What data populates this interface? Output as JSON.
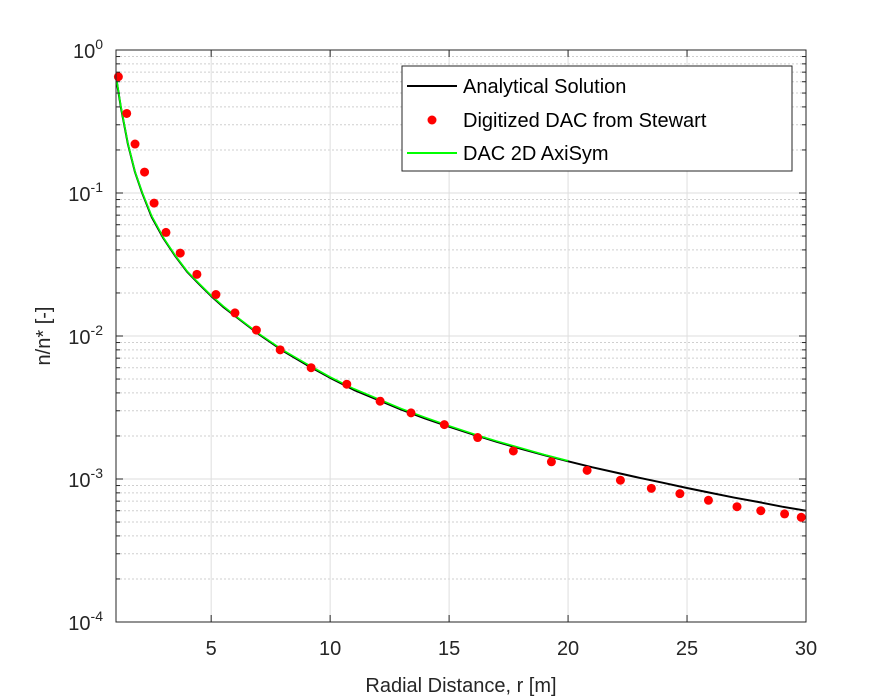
{
  "chart_data": {
    "type": "line",
    "title": "",
    "xlabel": "Radial Distance, r [m]",
    "ylabel": "n/n* [-]",
    "xlim": [
      1,
      30
    ],
    "ylim": [
      0.0001,
      1
    ],
    "yscale": "log",
    "grid": true,
    "legend_position": "top-right",
    "x_ticks": [
      5,
      10,
      15,
      20,
      25,
      30
    ],
    "x_tick_labels": [
      "5",
      "10",
      "15",
      "20",
      "25",
      "30"
    ],
    "y_ticks": [
      0.0001,
      0.001,
      0.01,
      0.1,
      1
    ],
    "y_tick_labels": [
      {
        "base": "10",
        "exp": "-4"
      },
      {
        "base": "10",
        "exp": "-3"
      },
      {
        "base": "10",
        "exp": "-2"
      },
      {
        "base": "10",
        "exp": "-1"
      },
      {
        "base": "10",
        "exp": "0"
      }
    ],
    "series": [
      {
        "name": "Analytical Solution",
        "style": "line",
        "color": "#000000",
        "x": [
          1.0,
          1.2,
          1.5,
          1.8,
          2.1,
          2.5,
          3.0,
          3.5,
          4.0,
          4.5,
          5.0,
          5.5,
          6.0,
          7.0,
          8.0,
          9.0,
          10.0,
          11.0,
          12.0,
          13.0,
          14.0,
          15.0,
          16.0,
          17.0,
          18.0,
          19.0,
          20.0,
          21.0,
          22.0,
          23.0,
          24.0,
          25.0,
          26.0,
          27.0,
          28.0,
          29.0,
          30.0
        ],
        "y": [
          0.65,
          0.4,
          0.22,
          0.14,
          0.1,
          0.068,
          0.048,
          0.036,
          0.028,
          0.023,
          0.019,
          0.016,
          0.0138,
          0.0103,
          0.0079,
          0.0063,
          0.0051,
          0.0042,
          0.00358,
          0.00305,
          0.00265,
          0.00232,
          0.00205,
          0.00182,
          0.00163,
          0.00147,
          0.00133,
          0.00121,
          0.00111,
          0.00102,
          0.00094,
          0.000865,
          0.0008,
          0.00074,
          0.00069,
          0.00064,
          0.0006
        ]
      },
      {
        "name": "Digitized DAC from Stewart",
        "style": "markers",
        "color": "#ff0000",
        "x": [
          1.1,
          1.45,
          1.8,
          2.2,
          2.6,
          3.1,
          3.7,
          4.4,
          5.2,
          6.0,
          6.9,
          7.9,
          9.2,
          10.7,
          12.1,
          13.4,
          14.8,
          16.2,
          17.7,
          19.3,
          20.8,
          22.2,
          23.5,
          24.7,
          25.9,
          27.1,
          28.1,
          29.1,
          29.8
        ],
        "y": [
          0.65,
          0.36,
          0.22,
          0.14,
          0.085,
          0.053,
          0.038,
          0.027,
          0.0195,
          0.0145,
          0.011,
          0.008,
          0.006,
          0.0046,
          0.0035,
          0.0029,
          0.0024,
          0.00195,
          0.00157,
          0.00132,
          0.00115,
          0.00098,
          0.00086,
          0.00079,
          0.00071,
          0.00064,
          0.0006,
          0.00057,
          0.00054
        ]
      },
      {
        "name": "DAC 2D AxiSym",
        "style": "line",
        "color": "#00ff00",
        "x": [
          1.0,
          1.2,
          1.5,
          1.8,
          2.1,
          2.5,
          3.0,
          3.5,
          4.0,
          4.5,
          5.0,
          5.5,
          6.0,
          7.0,
          8.0,
          9.0,
          10.0,
          11.0,
          12.0,
          13.0,
          14.0,
          15.0,
          16.0,
          17.0,
          18.0,
          19.0,
          20.0
        ],
        "y": [
          0.66,
          0.405,
          0.222,
          0.141,
          0.101,
          0.069,
          0.0485,
          0.0363,
          0.0282,
          0.0232,
          0.0192,
          0.0162,
          0.0139,
          0.0104,
          0.008,
          0.0064,
          0.00517,
          0.00427,
          0.00364,
          0.0031,
          0.00269,
          0.00235,
          0.00207,
          0.00184,
          0.00165,
          0.00148,
          0.00134
        ]
      }
    ]
  }
}
